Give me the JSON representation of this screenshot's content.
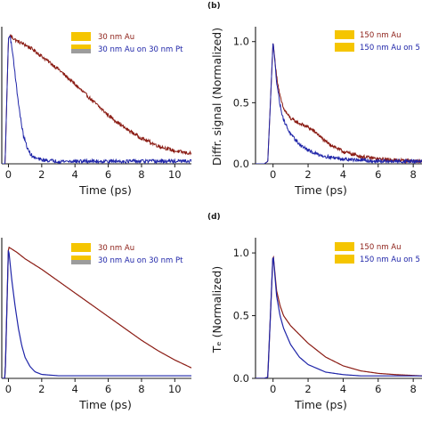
{
  "colors": {
    "red": "#8b1c14",
    "blue": "#1e24a8",
    "gold": "#f5c500",
    "gray": "#9c9c9c",
    "axis": "#1a1a1a"
  },
  "chart_data": [
    {
      "panel": "a",
      "type": "line",
      "xlabel": "Time (ps)",
      "ylabel": "",
      "xlim": [
        -0.4,
        11
      ],
      "ylim": [
        0,
        1.05
      ],
      "xticks": [
        0,
        2,
        4,
        6,
        8,
        10
      ],
      "yticks": [],
      "legend": "top-right",
      "legend_entries": [
        {
          "label": "30 nm Au",
          "swatch": "gold",
          "text_color": "red"
        },
        {
          "label": "30 nm Au on 30 nm Pt",
          "swatch": "gold-gray",
          "text_color": "blue"
        }
      ],
      "series": [
        {
          "color": "red",
          "noisy": true,
          "x": [
            -0.4,
            -0.2,
            -0.1,
            0.0,
            0.1,
            0.3,
            0.5,
            1.0,
            1.5,
            2.0,
            2.5,
            3.0,
            3.5,
            4.0,
            4.5,
            5.0,
            5.5,
            6.0,
            6.5,
            7.0,
            7.5,
            8.0,
            8.5,
            9.0,
            9.5,
            10.0,
            10.5,
            11.0
          ],
          "y": [
            0.0,
            0.0,
            0.5,
            0.98,
            1.0,
            0.98,
            0.96,
            0.93,
            0.89,
            0.84,
            0.79,
            0.74,
            0.68,
            0.62,
            0.56,
            0.5,
            0.44,
            0.38,
            0.33,
            0.28,
            0.24,
            0.2,
            0.17,
            0.14,
            0.12,
            0.1,
            0.09,
            0.08
          ]
        },
        {
          "color": "blue",
          "noisy": true,
          "x": [
            -0.4,
            -0.2,
            -0.1,
            0.0,
            0.1,
            0.3,
            0.5,
            0.7,
            0.9,
            1.2,
            1.5,
            2.0,
            3.0,
            5.0,
            8.0,
            11.0
          ],
          "y": [
            0.0,
            0.0,
            0.5,
            0.98,
            1.0,
            0.82,
            0.58,
            0.38,
            0.22,
            0.1,
            0.05,
            0.03,
            0.02,
            0.02,
            0.02,
            0.02
          ]
        }
      ]
    },
    {
      "panel": "b",
      "type": "line",
      "xlabel": "Time (ps)",
      "ylabel": "Diffr. signal (Normalized)",
      "xlim": [
        -1,
        8.5
      ],
      "ylim": [
        0,
        1.1
      ],
      "xticks": [
        0,
        2,
        4,
        6,
        8
      ],
      "xtick_labels": [
        "0",
        "2",
        "4",
        "6",
        "8"
      ],
      "yticks": [
        0.0,
        0.5,
        1.0
      ],
      "ytick_labels": [
        "0.0",
        "0.5",
        "1.0"
      ],
      "legend": "top-right",
      "legend_entries": [
        {
          "label": "150 nm Au",
          "swatch": "gold",
          "text_color": "red"
        },
        {
          "label": "150 nm Au on 5",
          "swatch": "gold",
          "text_color": "blue"
        }
      ],
      "series": [
        {
          "color": "red",
          "noisy": true,
          "x": [
            -1.0,
            -0.5,
            -0.3,
            -0.15,
            0.0,
            0.2,
            0.4,
            0.6,
            1.0,
            1.5,
            2.0,
            2.5,
            3.0,
            4.0,
            5.0,
            6.0,
            7.0,
            8.5
          ],
          "y": [
            0.0,
            0.0,
            0.02,
            0.5,
            1.0,
            0.72,
            0.55,
            0.45,
            0.37,
            0.33,
            0.3,
            0.25,
            0.18,
            0.1,
            0.06,
            0.04,
            0.03,
            0.02
          ]
        },
        {
          "color": "blue",
          "noisy": true,
          "x": [
            -1.0,
            -0.5,
            -0.3,
            -0.15,
            0.0,
            0.2,
            0.4,
            0.6,
            1.0,
            1.5,
            2.0,
            2.5,
            3.0,
            4.0,
            5.0,
            6.0,
            7.0,
            8.5
          ],
          "y": [
            0.0,
            0.0,
            0.02,
            0.5,
            1.0,
            0.68,
            0.48,
            0.36,
            0.24,
            0.16,
            0.11,
            0.08,
            0.06,
            0.04,
            0.03,
            0.02,
            0.02,
            0.02
          ]
        }
      ]
    },
    {
      "panel": "c",
      "type": "line",
      "xlabel": "Time (ps)",
      "ylabel": "",
      "xlim": [
        -0.4,
        11
      ],
      "ylim": [
        0,
        1.05
      ],
      "xticks": [
        0,
        2,
        4,
        6,
        8,
        10
      ],
      "yticks": [],
      "legend": "top-right",
      "legend_entries": [
        {
          "label": "30 nm Au",
          "swatch": "gold",
          "text_color": "red"
        },
        {
          "label": "30 nm Au on 30 nm Pt",
          "swatch": "gold-gray",
          "text_color": "blue"
        }
      ],
      "series": [
        {
          "color": "red",
          "noisy": false,
          "x": [
            -0.4,
            -0.2,
            -0.1,
            0.0,
            0.5,
            1.0,
            2.0,
            3.0,
            4.0,
            5.0,
            6.0,
            7.0,
            8.0,
            9.0,
            10.0,
            11.0
          ],
          "y": [
            0.0,
            0.0,
            0.5,
            1.0,
            0.96,
            0.91,
            0.83,
            0.74,
            0.65,
            0.56,
            0.47,
            0.38,
            0.29,
            0.21,
            0.14,
            0.08
          ]
        },
        {
          "color": "blue",
          "noisy": false,
          "x": [
            -0.4,
            -0.2,
            -0.1,
            0.0,
            0.2,
            0.4,
            0.6,
            0.8,
            1.0,
            1.3,
            1.6,
            2.0,
            3.0,
            5.0,
            8.0,
            11.0
          ],
          "y": [
            0.0,
            0.0,
            0.5,
            1.0,
            0.75,
            0.55,
            0.38,
            0.25,
            0.16,
            0.09,
            0.05,
            0.03,
            0.02,
            0.02,
            0.02,
            0.02
          ]
        }
      ]
    },
    {
      "panel": "d",
      "type": "line",
      "xlabel": "Time (ps)",
      "ylabel": "Tₑ (Normalized)",
      "xlim": [
        -1,
        8.5
      ],
      "ylim": [
        0,
        1.1
      ],
      "xticks": [
        0,
        2,
        4,
        6,
        8
      ],
      "xtick_labels": [
        "0",
        "2",
        "4",
        "6",
        "8"
      ],
      "yticks": [
        0.0,
        0.5,
        1.0
      ],
      "ytick_labels": [
        "0.0",
        "0.5",
        "1.0"
      ],
      "legend": "top-right",
      "legend_entries": [
        {
          "label": "150 nm Au",
          "swatch": "gold",
          "text_color": "red"
        },
        {
          "label": "150 nm Au on 5",
          "swatch": "gold",
          "text_color": "blue"
        }
      ],
      "series": [
        {
          "color": "red",
          "noisy": false,
          "x": [
            -1.0,
            -0.5,
            -0.3,
            -0.15,
            0.0,
            0.2,
            0.4,
            0.6,
            1.0,
            1.5,
            2.0,
            3.0,
            4.0,
            5.0,
            6.0,
            7.0,
            8.5
          ],
          "y": [
            0.0,
            0.0,
            0.01,
            0.5,
            1.0,
            0.7,
            0.58,
            0.5,
            0.42,
            0.35,
            0.28,
            0.17,
            0.1,
            0.06,
            0.04,
            0.03,
            0.02
          ]
        },
        {
          "color": "blue",
          "noisy": false,
          "x": [
            -1.0,
            -0.5,
            -0.3,
            -0.15,
            0.0,
            0.2,
            0.4,
            0.6,
            1.0,
            1.5,
            2.0,
            3.0,
            4.0,
            5.0,
            6.0,
            7.0,
            8.5
          ],
          "y": [
            0.0,
            0.0,
            0.01,
            0.5,
            1.0,
            0.66,
            0.5,
            0.4,
            0.27,
            0.17,
            0.11,
            0.05,
            0.03,
            0.02,
            0.02,
            0.02,
            0.02
          ]
        }
      ]
    }
  ],
  "panel_labels": {
    "b": "(b)",
    "d": "(d)"
  }
}
